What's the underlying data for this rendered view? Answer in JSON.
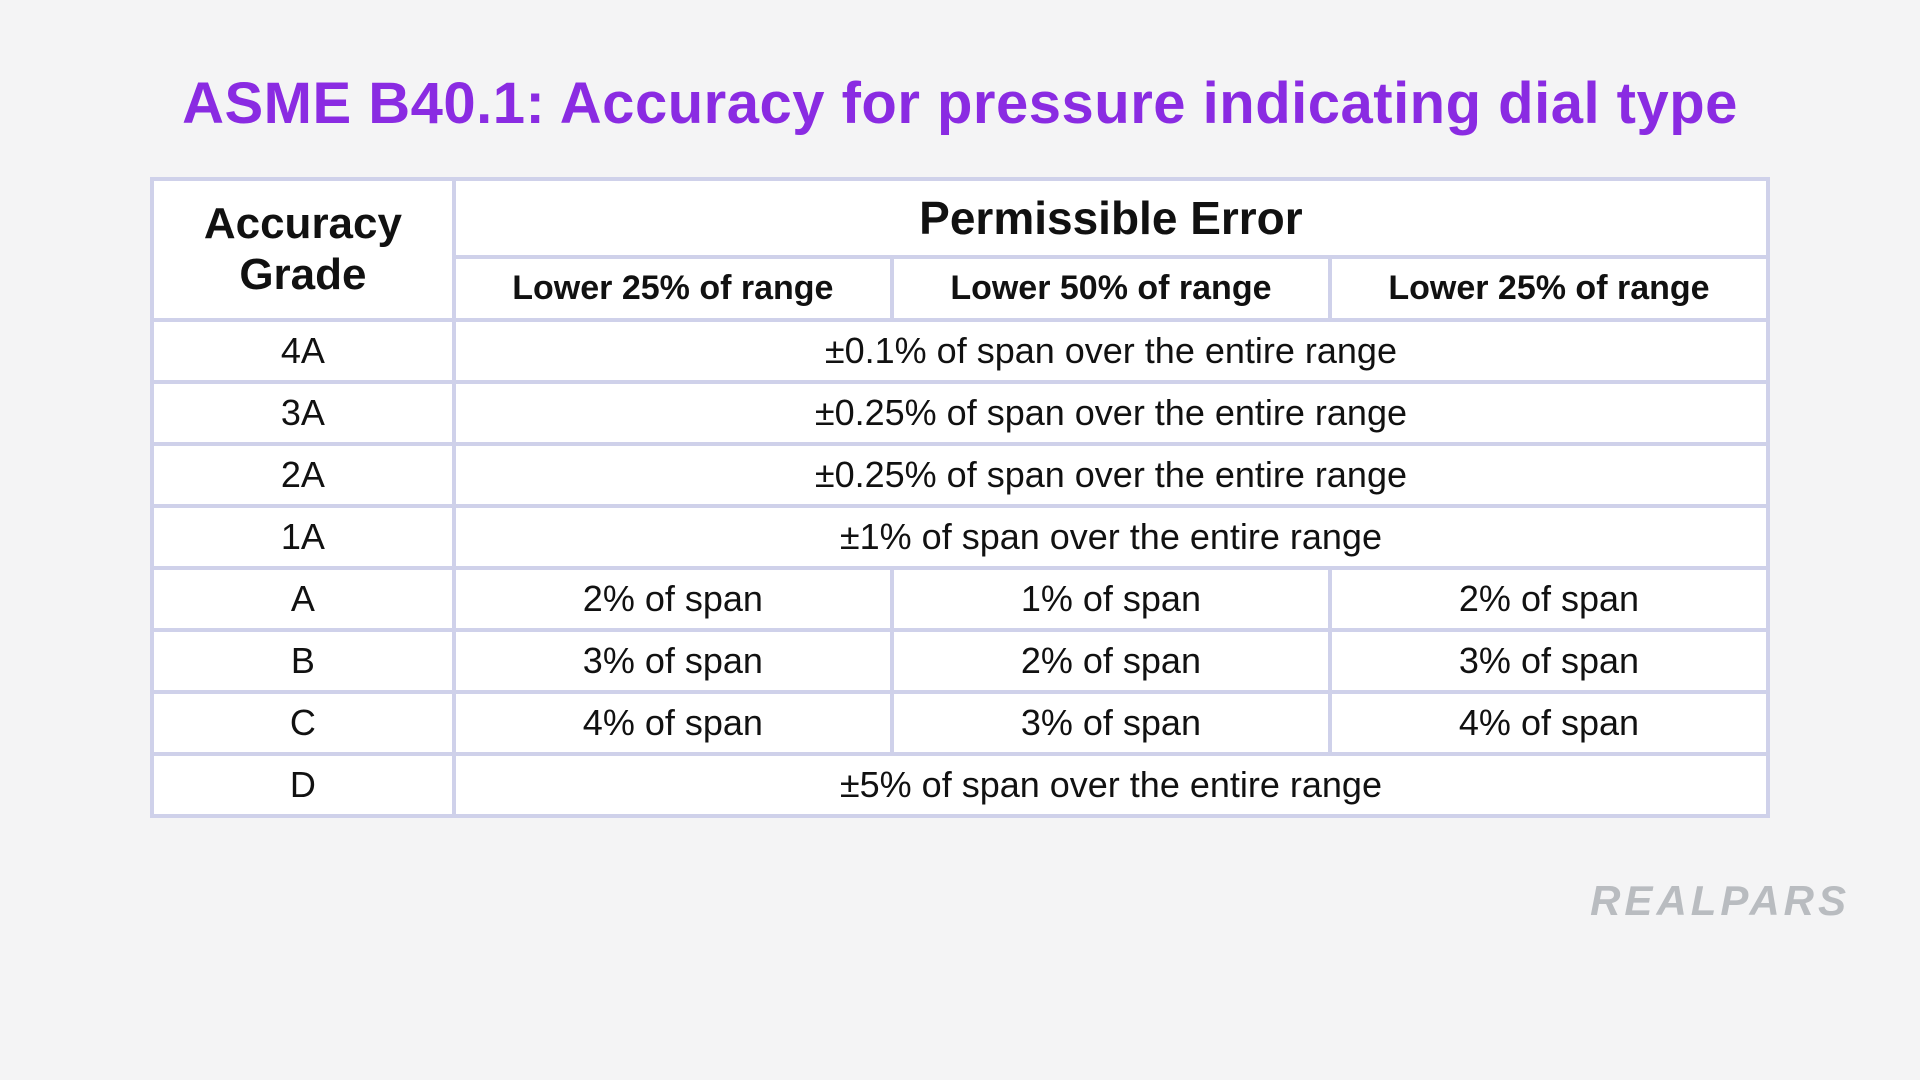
{
  "title": {
    "text": "ASME B40.1: Accuracy for pressure indicating dial type",
    "color": "#8a2be2",
    "fontsize": 58
  },
  "table": {
    "border_color": "#cfd1ea",
    "cell_bg": "#ffffff",
    "header": {
      "grade_label_line1": "Accuracy",
      "grade_label_line2": "Grade",
      "perm_label": "Permissible Error",
      "sub1": "Lower 25% of range",
      "sub2": "Lower 50% of range",
      "sub3": "Lower 25% of range",
      "head_fontsize": 44,
      "sub_fontsize": 34
    },
    "rows": [
      {
        "grade": "4A",
        "spanned": true,
        "full": "±0.1% of span over the entire range"
      },
      {
        "grade": "3A",
        "spanned": true,
        "full": "±0.25% of span over the entire range"
      },
      {
        "grade": "2A",
        "spanned": true,
        "full": "±0.25% of span over the entire range"
      },
      {
        "grade": "1A",
        "spanned": true,
        "full": "±1%  of span over the entire range"
      },
      {
        "grade": "A",
        "spanned": false,
        "c1": "2% of span",
        "c2": "1% of span",
        "c3": "2% of span"
      },
      {
        "grade": "B",
        "spanned": false,
        "c1": "3% of span",
        "c2": "2% of span",
        "c3": "3% of span"
      },
      {
        "grade": "C",
        "spanned": false,
        "c1": "4% of span",
        "c2": "3% of span",
        "c3": "4% of span"
      },
      {
        "grade": "D",
        "spanned": true,
        "full": "±5% of span over the entire range"
      }
    ],
    "cell_fontsize": 36
  },
  "watermark": {
    "text": "REALPARS",
    "color": "#b9bcc0"
  }
}
